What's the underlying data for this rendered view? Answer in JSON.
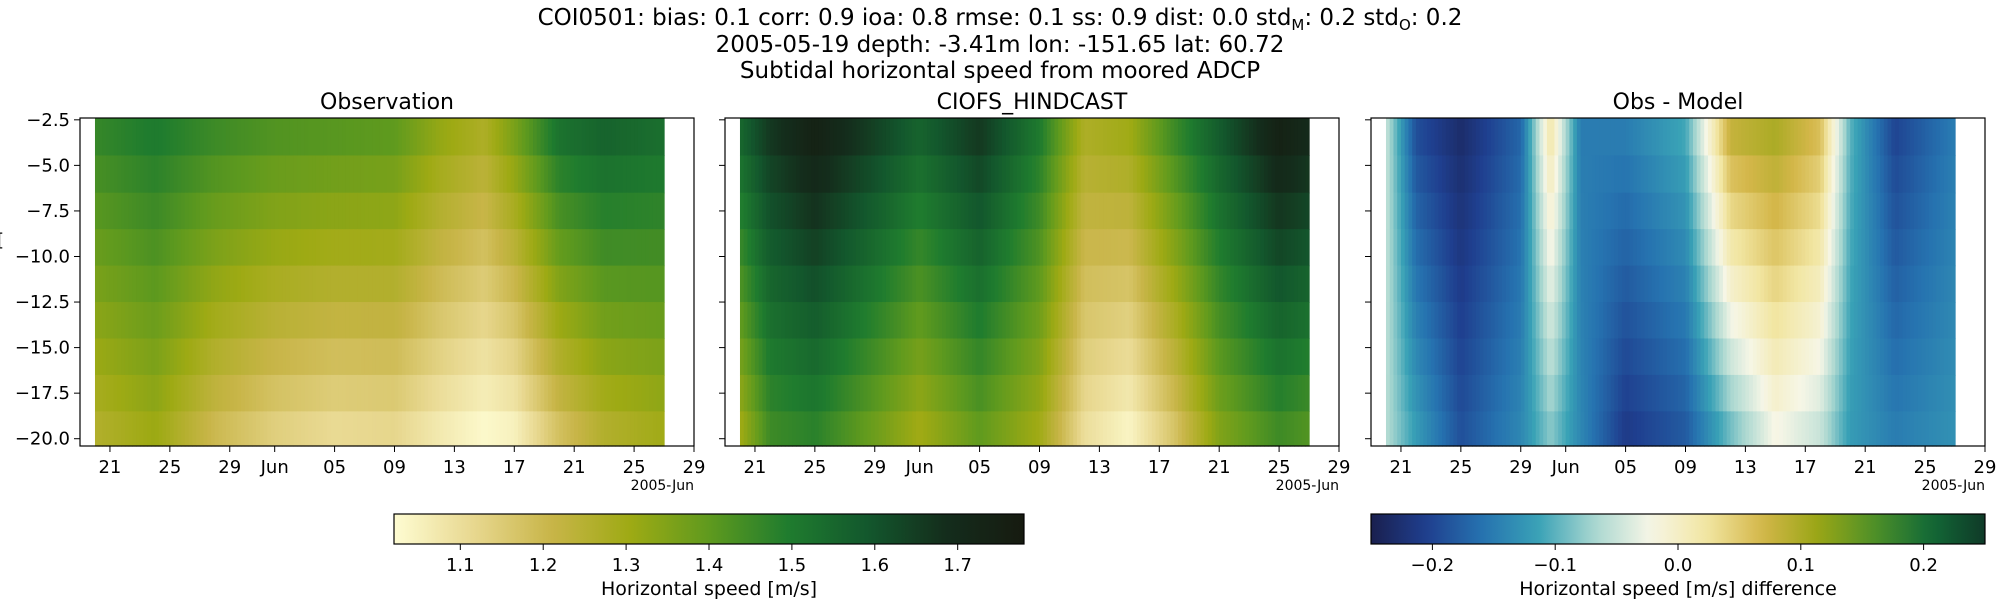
{
  "figure": {
    "title_line1": "COI0501: bias: 0.1  corr: 0.9  ioa: 0.8  rmse: 0.1  ss: 0.9  dist: 0.0  std",
    "title_sub_m": "M",
    "title_mid": ": 0.2  std",
    "title_sub_o": "O",
    "title_end": ": 0.2",
    "title_line2": "2005-05-19 depth: -3.41m lon: -151.65 lat: 60.72",
    "title_line3": "Subtidal horizontal speed from moored ADCP",
    "ylabel_fragment": "[",
    "colors": {
      "speed_cmap": [
        "#fefcd2",
        "#e8d890",
        "#c8b548",
        "#9eaa14",
        "#5f9a1e",
        "#1f7c2e",
        "#13582d",
        "#142d1c",
        "#161a10"
      ],
      "diff_cmap": [
        "#1a1f4e",
        "#1f3f8f",
        "#2673b0",
        "#39a2b6",
        "#a9d7d0",
        "#f6f6e6",
        "#f2e6a3",
        "#d4b74a",
        "#9aa616",
        "#4f9127",
        "#136a37",
        "#0f3a28"
      ]
    }
  },
  "chart_data": [
    {
      "type": "heatmap",
      "title": "Observation",
      "x_range": [
        "2005-05-19",
        "2005-06-29"
      ],
      "data_range": [
        "2005-05-20",
        "2005-06-27"
      ],
      "y_range": [
        -20.4,
        -2.4
      ],
      "y_rows": [
        -3.41,
        -5.5,
        -7.5,
        -9.5,
        -11.5,
        -13.5,
        -15.5,
        -17.5,
        -19.5
      ],
      "xticks": [
        "21",
        "25",
        "29",
        "Jun",
        "05",
        "09",
        "13",
        "17",
        "21",
        "25",
        "29"
      ],
      "xtick_dates": [
        "2005-05-21",
        "2005-05-25",
        "2005-05-29",
        "2005-06-01",
        "2005-06-05",
        "2005-06-09",
        "2005-06-13",
        "2005-06-17",
        "2005-06-21",
        "2005-06-25",
        "2005-06-29"
      ],
      "x_offset_label": "2005-Jun",
      "yticks": [
        -2.5,
        -5.0,
        -7.5,
        -10.0,
        -12.5,
        -15.0,
        -17.5,
        -20.0
      ],
      "ytick_labels": [
        "−2.5",
        "−5.0",
        "−7.5",
        "−10.0",
        "−12.5",
        "−15.0",
        "−17.5",
        "−20.0"
      ],
      "show_ytick_labels": true,
      "profile_dates": [
        "2005-05-20",
        "2005-05-24",
        "2005-05-28",
        "2005-06-01",
        "2005-06-05",
        "2005-06-09",
        "2005-06-12",
        "2005-06-15",
        "2005-06-17",
        "2005-06-20",
        "2005-06-23",
        "2005-06-27"
      ],
      "surface_values": [
        1.46,
        1.5,
        1.45,
        1.42,
        1.41,
        1.4,
        1.32,
        1.27,
        1.36,
        1.52,
        1.56,
        1.53
      ],
      "bottom_values": [
        1.26,
        1.31,
        1.2,
        1.14,
        1.11,
        1.12,
        1.07,
        1.03,
        1.05,
        1.18,
        1.26,
        1.3
      ],
      "vlim": [
        1.02,
        1.78
      ],
      "cmap": "speed"
    },
    {
      "type": "heatmap",
      "title": "CIOFS_HINDCAST",
      "x_range": [
        "2005-05-19",
        "2005-06-29"
      ],
      "data_range": [
        "2005-05-20",
        "2005-06-27"
      ],
      "y_range": [
        -20.4,
        -2.4
      ],
      "y_rows": [
        -3.41,
        -5.5,
        -7.5,
        -9.5,
        -11.5,
        -13.5,
        -15.5,
        -17.5,
        -19.5
      ],
      "xticks": [
        "21",
        "25",
        "29",
        "Jun",
        "05",
        "09",
        "13",
        "17",
        "21",
        "25",
        "29"
      ],
      "xtick_dates": [
        "2005-05-21",
        "2005-05-25",
        "2005-05-29",
        "2005-06-01",
        "2005-06-05",
        "2005-06-09",
        "2005-06-13",
        "2005-06-17",
        "2005-06-21",
        "2005-06-25",
        "2005-06-29"
      ],
      "x_offset_label": "2005-Jun",
      "yticks": [
        -2.5,
        -5.0,
        -7.5,
        -10.0,
        -12.5,
        -15.0,
        -17.5,
        -20.0
      ],
      "show_ytick_labels": false,
      "profile_dates": [
        "2005-05-20",
        "2005-05-22",
        "2005-05-25",
        "2005-05-29",
        "2005-06-01",
        "2005-06-05",
        "2005-06-09",
        "2005-06-12",
        "2005-06-15",
        "2005-06-18",
        "2005-06-21",
        "2005-06-25",
        "2005-06-27"
      ],
      "surface_values": [
        1.55,
        1.66,
        1.74,
        1.64,
        1.56,
        1.66,
        1.5,
        1.27,
        1.3,
        1.45,
        1.58,
        1.74,
        1.7
      ],
      "bottom_values": [
        1.3,
        1.45,
        1.48,
        1.38,
        1.3,
        1.4,
        1.3,
        1.1,
        1.04,
        1.17,
        1.35,
        1.45,
        1.42
      ],
      "vlim": [
        1.02,
        1.78
      ],
      "cmap": "speed"
    },
    {
      "type": "heatmap",
      "title": "Obs - Model",
      "x_range": [
        "2005-05-19",
        "2005-06-29"
      ],
      "data_range": [
        "2005-05-20",
        "2005-06-27"
      ],
      "y_range": [
        -20.4,
        -2.4
      ],
      "y_rows": [
        -3.41,
        -5.5,
        -7.5,
        -9.5,
        -11.5,
        -13.5,
        -15.5,
        -17.5,
        -19.5
      ],
      "xticks": [
        "21",
        "25",
        "29",
        "Jun",
        "05",
        "09",
        "13",
        "17",
        "21",
        "25",
        "29"
      ],
      "xtick_dates": [
        "2005-05-21",
        "2005-05-25",
        "2005-05-29",
        "2005-06-01",
        "2005-06-05",
        "2005-06-09",
        "2005-06-13",
        "2005-06-17",
        "2005-06-21",
        "2005-06-25",
        "2005-06-29"
      ],
      "x_offset_label": "2005-Jun",
      "yticks": [
        -2.5,
        -5.0,
        -7.5,
        -10.0,
        -12.5,
        -15.0,
        -17.5,
        -20.0
      ],
      "show_ytick_labels": false,
      "profile_dates": [
        "2005-05-20",
        "2005-05-22",
        "2005-05-25",
        "2005-05-29",
        "2005-05-31",
        "2005-06-02",
        "2005-06-05",
        "2005-06-09",
        "2005-06-12",
        "2005-06-15",
        "2005-06-18",
        "2005-06-20",
        "2005-06-23",
        "2005-06-27"
      ],
      "surface_values": [
        -0.05,
        -0.19,
        -0.23,
        -0.17,
        0.02,
        -0.15,
        -0.15,
        -0.11,
        0.08,
        0.1,
        0.06,
        -0.1,
        -0.2,
        -0.15
      ],
      "bottom_values": [
        -0.06,
        -0.12,
        -0.19,
        -0.14,
        -0.08,
        -0.14,
        -0.21,
        -0.18,
        -0.09,
        -0.02,
        -0.05,
        -0.12,
        -0.15,
        -0.13
      ],
      "vlim": [
        -0.25,
        0.25
      ],
      "cmap": "diff"
    }
  ],
  "colorbars": [
    {
      "label": "Horizontal speed [m/s]",
      "range": [
        1.02,
        1.78
      ],
      "ticks": [
        1.1,
        1.2,
        1.3,
        1.4,
        1.5,
        1.6,
        1.7
      ],
      "tick_labels": [
        "1.1",
        "1.2",
        "1.3",
        "1.4",
        "1.5",
        "1.6",
        "1.7"
      ],
      "cmap": "speed"
    },
    {
      "label": "Horizontal speed [m/s] difference",
      "range": [
        -0.25,
        0.25
      ],
      "ticks": [
        -0.2,
        -0.1,
        0.0,
        0.1,
        0.2
      ],
      "tick_labels": [
        "−0.2",
        "−0.1",
        "0.0",
        "0.1",
        "0.2"
      ],
      "cmap": "diff"
    }
  ]
}
